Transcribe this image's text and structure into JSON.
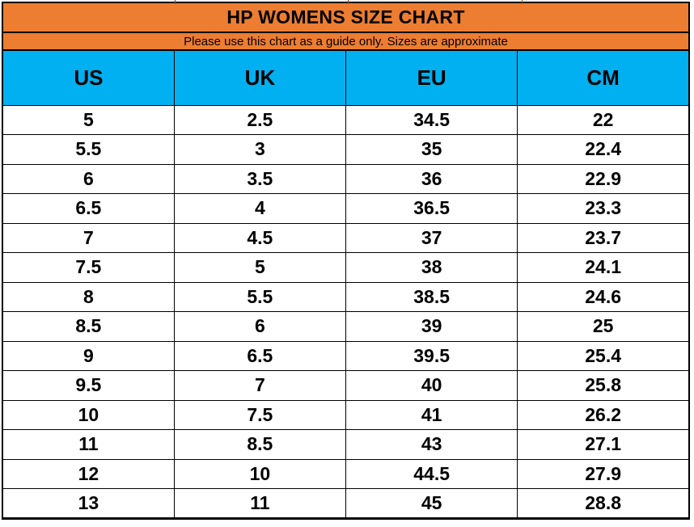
{
  "title": "HP WOMENS SIZE CHART",
  "subtitle": "Please use this chart as a guide only. Sizes are approximate",
  "colors": {
    "banner_orange": "#ED7D31",
    "header_blue": "#00B0F0",
    "grid_black": "#000000",
    "text_black": "#000000",
    "row_white": "#FFFFFF"
  },
  "chart_data": {
    "type": "table",
    "title": "HP WOMENS SIZE CHART",
    "subtitle": "Please use this chart as a guide only. Sizes are approximate",
    "columns": [
      "US",
      "UK",
      "EU",
      "CM"
    ],
    "rows": [
      [
        "5",
        "2.5",
        "34.5",
        "22"
      ],
      [
        "5.5",
        "3",
        "35",
        "22.4"
      ],
      [
        "6",
        "3.5",
        "36",
        "22.9"
      ],
      [
        "6.5",
        "4",
        "36.5",
        "23.3"
      ],
      [
        "7",
        "4.5",
        "37",
        "23.7"
      ],
      [
        "7.5",
        "5",
        "38",
        "24.1"
      ],
      [
        "8",
        "5.5",
        "38.5",
        "24.6"
      ],
      [
        "8.5",
        "6",
        "39",
        "25"
      ],
      [
        "9",
        "6.5",
        "39.5",
        "25.4"
      ],
      [
        "9.5",
        "7",
        "40",
        "25.8"
      ],
      [
        "10",
        "7.5",
        "41",
        "26.2"
      ],
      [
        "11",
        "8.5",
        "43",
        "27.1"
      ],
      [
        "12",
        "10",
        "44.5",
        "27.9"
      ],
      [
        "13",
        "11",
        "45",
        "28.8"
      ]
    ],
    "layout": {
      "grid": true,
      "legend": false
    }
  }
}
